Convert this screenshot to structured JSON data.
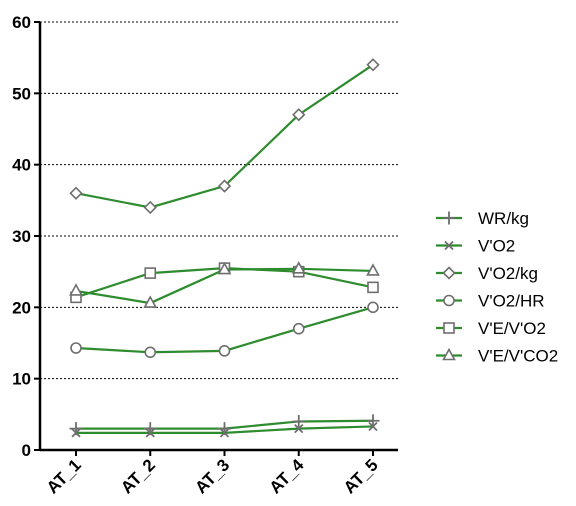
{
  "chart_data": {
    "type": "line",
    "title": "",
    "xlabel": "",
    "ylabel": "",
    "categories": [
      "AT_1",
      "AT_2",
      "AT_3",
      "AT_4",
      "AT_5"
    ],
    "ylim": [
      0,
      60
    ],
    "yticks": [
      0,
      10,
      20,
      30,
      40,
      50,
      60
    ],
    "grid": "horizontal dotted",
    "legend_position": "right",
    "line_color": "#2e8b2e",
    "marker_color": "#6e6e6e",
    "series": [
      {
        "name": "WR/kg",
        "marker": "plus",
        "values": [
          3.0,
          3.0,
          3.0,
          4.0,
          4.1
        ]
      },
      {
        "name": "V'O2",
        "marker": "x",
        "values": [
          2.4,
          2.4,
          2.4,
          3.0,
          3.3
        ]
      },
      {
        "name": "V'O2/kg",
        "marker": "diamond",
        "values": [
          36.0,
          34.0,
          37.0,
          47.0,
          54.0
        ]
      },
      {
        "name": "V'O2/HR",
        "marker": "circle",
        "values": [
          14.3,
          13.7,
          13.9,
          17.0,
          20.0
        ]
      },
      {
        "name": "V'E/V'O2",
        "marker": "square",
        "values": [
          21.4,
          24.8,
          25.5,
          25.0,
          22.8
        ]
      },
      {
        "name": "V'E/V'CO2",
        "marker": "triangle",
        "values": [
          22.3,
          20.6,
          25.3,
          25.4,
          25.1
        ]
      }
    ]
  }
}
